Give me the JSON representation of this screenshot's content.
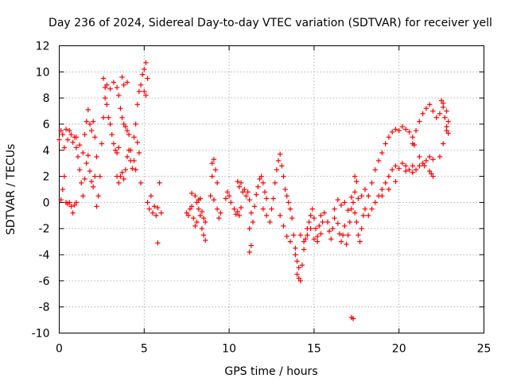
{
  "chart_data": {
    "type": "scatter",
    "title": "Day 236 of 2024, Sidereal Day-to-day VTEC variation (SDTVAR) for receiver yell",
    "xlabel": "GPS time / hours",
    "ylabel": "SDTVAR / TECUs",
    "xlim": [
      0,
      25
    ],
    "ylim": [
      -10,
      12
    ],
    "xticks": [
      0,
      5,
      10,
      15,
      20,
      25
    ],
    "yticks": [
      -10,
      -8,
      -6,
      -4,
      -2,
      0,
      2,
      4,
      6,
      8,
      10,
      12
    ],
    "grid": true,
    "marker": "+",
    "color": "#ff0000",
    "series": [
      {
        "name": "SDTVAR",
        "points": [
          [
            0.0,
            4.8
          ],
          [
            0.1,
            5.5
          ],
          [
            0.2,
            5.2
          ],
          [
            0.3,
            4.2
          ],
          [
            0.4,
            5.6
          ],
          [
            0.5,
            4.8
          ],
          [
            0.6,
            5.5
          ],
          [
            0.7,
            5.2
          ],
          [
            0.8,
            4.6
          ],
          [
            0.9,
            5.0
          ],
          [
            0.1,
            0.2
          ],
          [
            0.2,
            1.0
          ],
          [
            0.3,
            2.0
          ],
          [
            0.4,
            0.0
          ],
          [
            0.5,
            -0.1
          ],
          [
            0.6,
            0.0
          ],
          [
            0.7,
            -0.3
          ],
          [
            0.8,
            -0.8
          ],
          [
            0.9,
            -0.2
          ],
          [
            1.0,
            0.0
          ],
          [
            1.0,
            4.2
          ],
          [
            1.1,
            3.5
          ],
          [
            1.2,
            2.5
          ],
          [
            1.3,
            1.5
          ],
          [
            1.4,
            0.5
          ],
          [
            1.5,
            1.8
          ],
          [
            1.6,
            3.0
          ],
          [
            1.7,
            3.6
          ],
          [
            1.8,
            2.4
          ],
          [
            1.9,
            1.6
          ],
          [
            1.0,
            5.0
          ],
          [
            1.2,
            4.4
          ],
          [
            1.4,
            3.8
          ],
          [
            1.5,
            5.2
          ],
          [
            1.6,
            6.2
          ],
          [
            1.7,
            7.1
          ],
          [
            1.8,
            6.0
          ],
          [
            1.9,
            5.5
          ],
          [
            2.0,
            6.2
          ],
          [
            2.1,
            5.0
          ],
          [
            2.0,
            1.2
          ],
          [
            2.1,
            2.0
          ],
          [
            2.2,
            3.5
          ],
          [
            2.2,
            -0.3
          ],
          [
            2.3,
            0.5
          ],
          [
            2.4,
            2.0
          ],
          [
            2.5,
            4.5
          ],
          [
            2.6,
            6.5
          ],
          [
            2.7,
            8.0
          ],
          [
            2.8,
            9.0
          ],
          [
            2.6,
            9.5
          ],
          [
            2.7,
            8.8
          ],
          [
            2.8,
            7.5
          ],
          [
            2.9,
            6.5
          ],
          [
            3.0,
            6.0
          ],
          [
            3.1,
            5.2
          ],
          [
            3.2,
            4.5
          ],
          [
            3.3,
            4.0
          ],
          [
            3.4,
            3.8
          ],
          [
            3.5,
            4.2
          ],
          [
            3.0,
            8.7
          ],
          [
            3.2,
            9.2
          ],
          [
            3.4,
            8.8
          ],
          [
            3.5,
            8.2
          ],
          [
            3.6,
            7.2
          ],
          [
            3.7,
            6.5
          ],
          [
            3.8,
            6.0
          ],
          [
            3.9,
            5.8
          ],
          [
            4.0,
            5.5
          ],
          [
            4.1,
            5.2
          ],
          [
            3.4,
            2.0
          ],
          [
            3.5,
            1.5
          ],
          [
            3.6,
            2.0
          ],
          [
            3.7,
            2.3
          ],
          [
            3.8,
            1.8
          ],
          [
            3.9,
            2.5
          ],
          [
            4.0,
            3.5
          ],
          [
            4.1,
            4.0
          ],
          [
            4.2,
            3.2
          ],
          [
            4.3,
            2.6
          ],
          [
            3.7,
            9.6
          ],
          [
            3.8,
            9.0
          ],
          [
            4.0,
            9.2
          ],
          [
            4.2,
            4.0
          ],
          [
            4.4,
            5.0
          ],
          [
            4.5,
            6.0
          ],
          [
            4.6,
            7.5
          ],
          [
            4.7,
            8.5
          ],
          [
            4.8,
            9.0
          ],
          [
            4.9,
            9.8
          ],
          [
            5.0,
            10.2
          ],
          [
            5.1,
            10.7
          ],
          [
            5.2,
            9.5
          ],
          [
            5.0,
            8.5
          ],
          [
            5.1,
            8.2
          ],
          [
            4.6,
            4.6
          ],
          [
            4.7,
            3.8
          ],
          [
            4.8,
            1.5
          ],
          [
            4.5,
            2.5
          ],
          [
            4.4,
            3.2
          ],
          [
            5.2,
            0.0
          ],
          [
            5.3,
            -0.5
          ],
          [
            5.4,
            0.5
          ],
          [
            5.5,
            -0.8
          ],
          [
            5.6,
            -0.3
          ],
          [
            5.7,
            -1.0
          ],
          [
            5.8,
            -0.4
          ],
          [
            5.9,
            1.5
          ],
          [
            6.0,
            -0.8
          ],
          [
            5.8,
            -3.1
          ],
          [
            7.5,
            -0.8
          ],
          [
            7.6,
            -1.0
          ],
          [
            7.7,
            -0.5
          ],
          [
            7.8,
            -0.3
          ],
          [
            7.9,
            -1.2
          ],
          [
            8.0,
            -1.8
          ],
          [
            8.1,
            -1.5
          ],
          [
            8.2,
            -0.5
          ],
          [
            8.3,
            0.3
          ],
          [
            8.4,
            -0.7
          ],
          [
            8.5,
            -1.2
          ],
          [
            8.6,
            -1.5
          ],
          [
            7.8,
            0.7
          ],
          [
            8.0,
            0.5
          ],
          [
            8.2,
            0.2
          ],
          [
            8.4,
            -2.0
          ],
          [
            8.5,
            -2.5
          ],
          [
            8.6,
            -2.9
          ],
          [
            8.3,
            -1.0
          ],
          [
            8.1,
            0.0
          ],
          [
            9.0,
            3.0
          ],
          [
            9.1,
            3.3
          ],
          [
            9.2,
            2.5
          ],
          [
            9.3,
            1.5
          ],
          [
            9.0,
            2.0
          ],
          [
            8.9,
            0.5
          ],
          [
            9.1,
            0.2
          ],
          [
            9.3,
            -0.5
          ],
          [
            9.4,
            -1.2
          ],
          [
            9.5,
            -0.8
          ],
          [
            9.8,
            0.3
          ],
          [
            9.9,
            0.8
          ],
          [
            10.0,
            0.5
          ],
          [
            10.1,
            0.0
          ],
          [
            10.3,
            -0.5
          ],
          [
            10.4,
            -0.9
          ],
          [
            10.5,
            -0.7
          ],
          [
            10.6,
            -1.0
          ],
          [
            10.7,
            -0.4
          ],
          [
            10.8,
            0.8
          ],
          [
            10.5,
            1.6
          ],
          [
            10.6,
            1.2
          ],
          [
            10.7,
            1.5
          ],
          [
            10.9,
            1.0
          ],
          [
            11.0,
            0.5
          ],
          [
            11.1,
            0.8
          ],
          [
            11.2,
            0.2
          ],
          [
            11.3,
            -0.8
          ],
          [
            11.4,
            -1.5
          ],
          [
            11.5,
            -0.3
          ],
          [
            11.2,
            -2.0
          ],
          [
            11.3,
            -3.3
          ],
          [
            11.2,
            -3.8
          ],
          [
            11.6,
            0.6
          ],
          [
            11.7,
            1.2
          ],
          [
            11.8,
            1.8
          ],
          [
            11.9,
            2.0
          ],
          [
            12.0,
            1.5
          ],
          [
            12.1,
            0.8
          ],
          [
            12.2,
            0.3
          ],
          [
            12.0,
            -0.5
          ],
          [
            12.2,
            -1.0
          ],
          [
            12.4,
            -1.5
          ],
          [
            12.5,
            -0.5
          ],
          [
            12.6,
            0.3
          ],
          [
            12.7,
            1.5
          ],
          [
            12.8,
            2.5
          ],
          [
            12.9,
            3.2
          ],
          [
            13.0,
            3.7
          ],
          [
            13.1,
            2.8
          ],
          [
            13.2,
            2.0
          ],
          [
            13.3,
            1.0
          ],
          [
            13.4,
            0.5
          ],
          [
            13.5,
            0.0
          ],
          [
            13.6,
            -0.5
          ],
          [
            13.7,
            -1.2
          ],
          [
            13.8,
            -2.5
          ],
          [
            13.9,
            -4.0
          ],
          [
            14.0,
            -5.5
          ],
          [
            14.1,
            -5.8
          ],
          [
            13.0,
            -1.0
          ],
          [
            13.2,
            -1.8
          ],
          [
            13.4,
            -2.6
          ],
          [
            13.6,
            -3.0
          ],
          [
            13.9,
            -3.5
          ],
          [
            14.0,
            -4.5
          ],
          [
            14.1,
            -5.0
          ],
          [
            14.2,
            -6.0
          ],
          [
            14.3,
            -4.8
          ],
          [
            14.4,
            -3.6
          ],
          [
            14.5,
            -2.8
          ],
          [
            14.6,
            -2.0
          ],
          [
            14.7,
            -1.5
          ],
          [
            14.8,
            -1.0
          ],
          [
            14.9,
            -0.5
          ],
          [
            15.0,
            -1.2
          ],
          [
            15.1,
            -2.0
          ],
          [
            15.2,
            -2.6
          ],
          [
            15.3,
            -1.8
          ],
          [
            15.4,
            -1.0
          ],
          [
            14.2,
            -2.5
          ],
          [
            14.4,
            -3.0
          ],
          [
            14.6,
            -2.5
          ],
          [
            14.8,
            -2.0
          ],
          [
            15.0,
            -2.8
          ],
          [
            15.2,
            -3.0
          ],
          [
            15.4,
            -2.4
          ],
          [
            15.5,
            -1.5
          ],
          [
            15.6,
            -0.8
          ],
          [
            15.8,
            -1.5
          ],
          [
            15.9,
            -2.2
          ],
          [
            16.0,
            -2.8
          ],
          [
            16.1,
            -2.0
          ],
          [
            16.2,
            -1.2
          ],
          [
            16.4,
            -1.6
          ],
          [
            16.5,
            -2.4
          ],
          [
            16.6,
            -3.0
          ],
          [
            16.7,
            -2.5
          ],
          [
            16.8,
            -1.8
          ],
          [
            16.9,
            -3.2
          ],
          [
            17.0,
            -2.5
          ],
          [
            17.1,
            -1.5
          ],
          [
            17.2,
            -0.5
          ],
          [
            17.3,
            0.0
          ],
          [
            17.4,
            -0.8
          ],
          [
            17.5,
            -1.5
          ],
          [
            17.6,
            -2.5
          ],
          [
            17.7,
            -3.0
          ],
          [
            17.8,
            -2.0
          ],
          [
            17.9,
            -1.0
          ],
          [
            16.2,
            -0.5
          ],
          [
            16.4,
            0.2
          ],
          [
            16.6,
            -0.2
          ],
          [
            16.8,
            0.0
          ],
          [
            17.0,
            -0.6
          ],
          [
            17.2,
            0.4
          ],
          [
            17.4,
            0.8
          ],
          [
            17.6,
            0.3
          ],
          [
            17.8,
            0.5
          ],
          [
            18.0,
            1.0
          ],
          [
            17.2,
            -8.8
          ],
          [
            17.3,
            -8.9
          ],
          [
            17.4,
            2.0
          ],
          [
            17.5,
            1.6
          ],
          [
            18.0,
            -0.5
          ],
          [
            18.2,
            0.5
          ],
          [
            18.4,
            1.5
          ],
          [
            18.6,
            2.5
          ],
          [
            18.8,
            3.2
          ],
          [
            19.0,
            3.8
          ],
          [
            19.2,
            4.5
          ],
          [
            19.4,
            5.0
          ],
          [
            19.6,
            5.4
          ],
          [
            19.8,
            5.6
          ],
          [
            20.0,
            5.5
          ],
          [
            20.2,
            5.8
          ],
          [
            20.4,
            5.6
          ],
          [
            20.6,
            5.4
          ],
          [
            20.8,
            5.0
          ],
          [
            20.9,
            4.4
          ],
          [
            18.2,
            -1.0
          ],
          [
            18.4,
            -0.5
          ],
          [
            18.6,
            0.0
          ],
          [
            18.8,
            0.5
          ],
          [
            19.0,
            1.0
          ],
          [
            19.2,
            1.5
          ],
          [
            19.4,
            2.0
          ],
          [
            19.6,
            2.5
          ],
          [
            19.8,
            2.8
          ],
          [
            20.0,
            2.6
          ],
          [
            20.2,
            3.0
          ],
          [
            20.4,
            2.8
          ],
          [
            20.6,
            2.5
          ],
          [
            20.8,
            2.3
          ],
          [
            21.0,
            2.5
          ],
          [
            21.2,
            2.8
          ],
          [
            21.4,
            3.0
          ],
          [
            21.6,
            3.2
          ],
          [
            21.8,
            3.5
          ],
          [
            22.0,
            3.3
          ],
          [
            19.0,
            0.5
          ],
          [
            19.4,
            1.0
          ],
          [
            19.8,
            1.6
          ],
          [
            20.4,
            2.4
          ],
          [
            20.8,
            2.8
          ],
          [
            21.2,
            3.5
          ],
          [
            21.5,
            2.8
          ],
          [
            21.8,
            2.4
          ],
          [
            21.9,
            2.2
          ],
          [
            22.0,
            2.0
          ],
          [
            20.8,
            4.5
          ],
          [
            21.0,
            5.5
          ],
          [
            21.2,
            6.2
          ],
          [
            21.4,
            6.8
          ],
          [
            21.6,
            7.2
          ],
          [
            21.8,
            7.5
          ],
          [
            22.0,
            7.0
          ],
          [
            22.2,
            6.5
          ],
          [
            22.4,
            6.8
          ],
          [
            22.6,
            7.3
          ],
          [
            22.4,
            3.5
          ],
          [
            22.6,
            4.5
          ],
          [
            22.8,
            5.5
          ],
          [
            22.7,
            6.5
          ],
          [
            22.5,
            7.8
          ],
          [
            22.6,
            7.6
          ],
          [
            22.8,
            7.0
          ],
          [
            22.9,
            6.2
          ],
          [
            22.8,
            5.8
          ],
          [
            22.9,
            5.3
          ]
        ]
      }
    ]
  }
}
